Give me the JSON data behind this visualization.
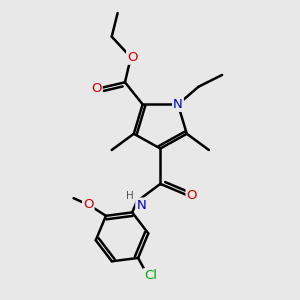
{
  "bg_color": "#e8e8e8",
  "bond_color": "#000000",
  "bond_width": 1.8,
  "atom_colors": {
    "N": "#0000cc",
    "O": "#cc0000",
    "Cl": "#00aa00",
    "H": "#555555",
    "C": "#000000"
  },
  "font_size": 8.5
}
